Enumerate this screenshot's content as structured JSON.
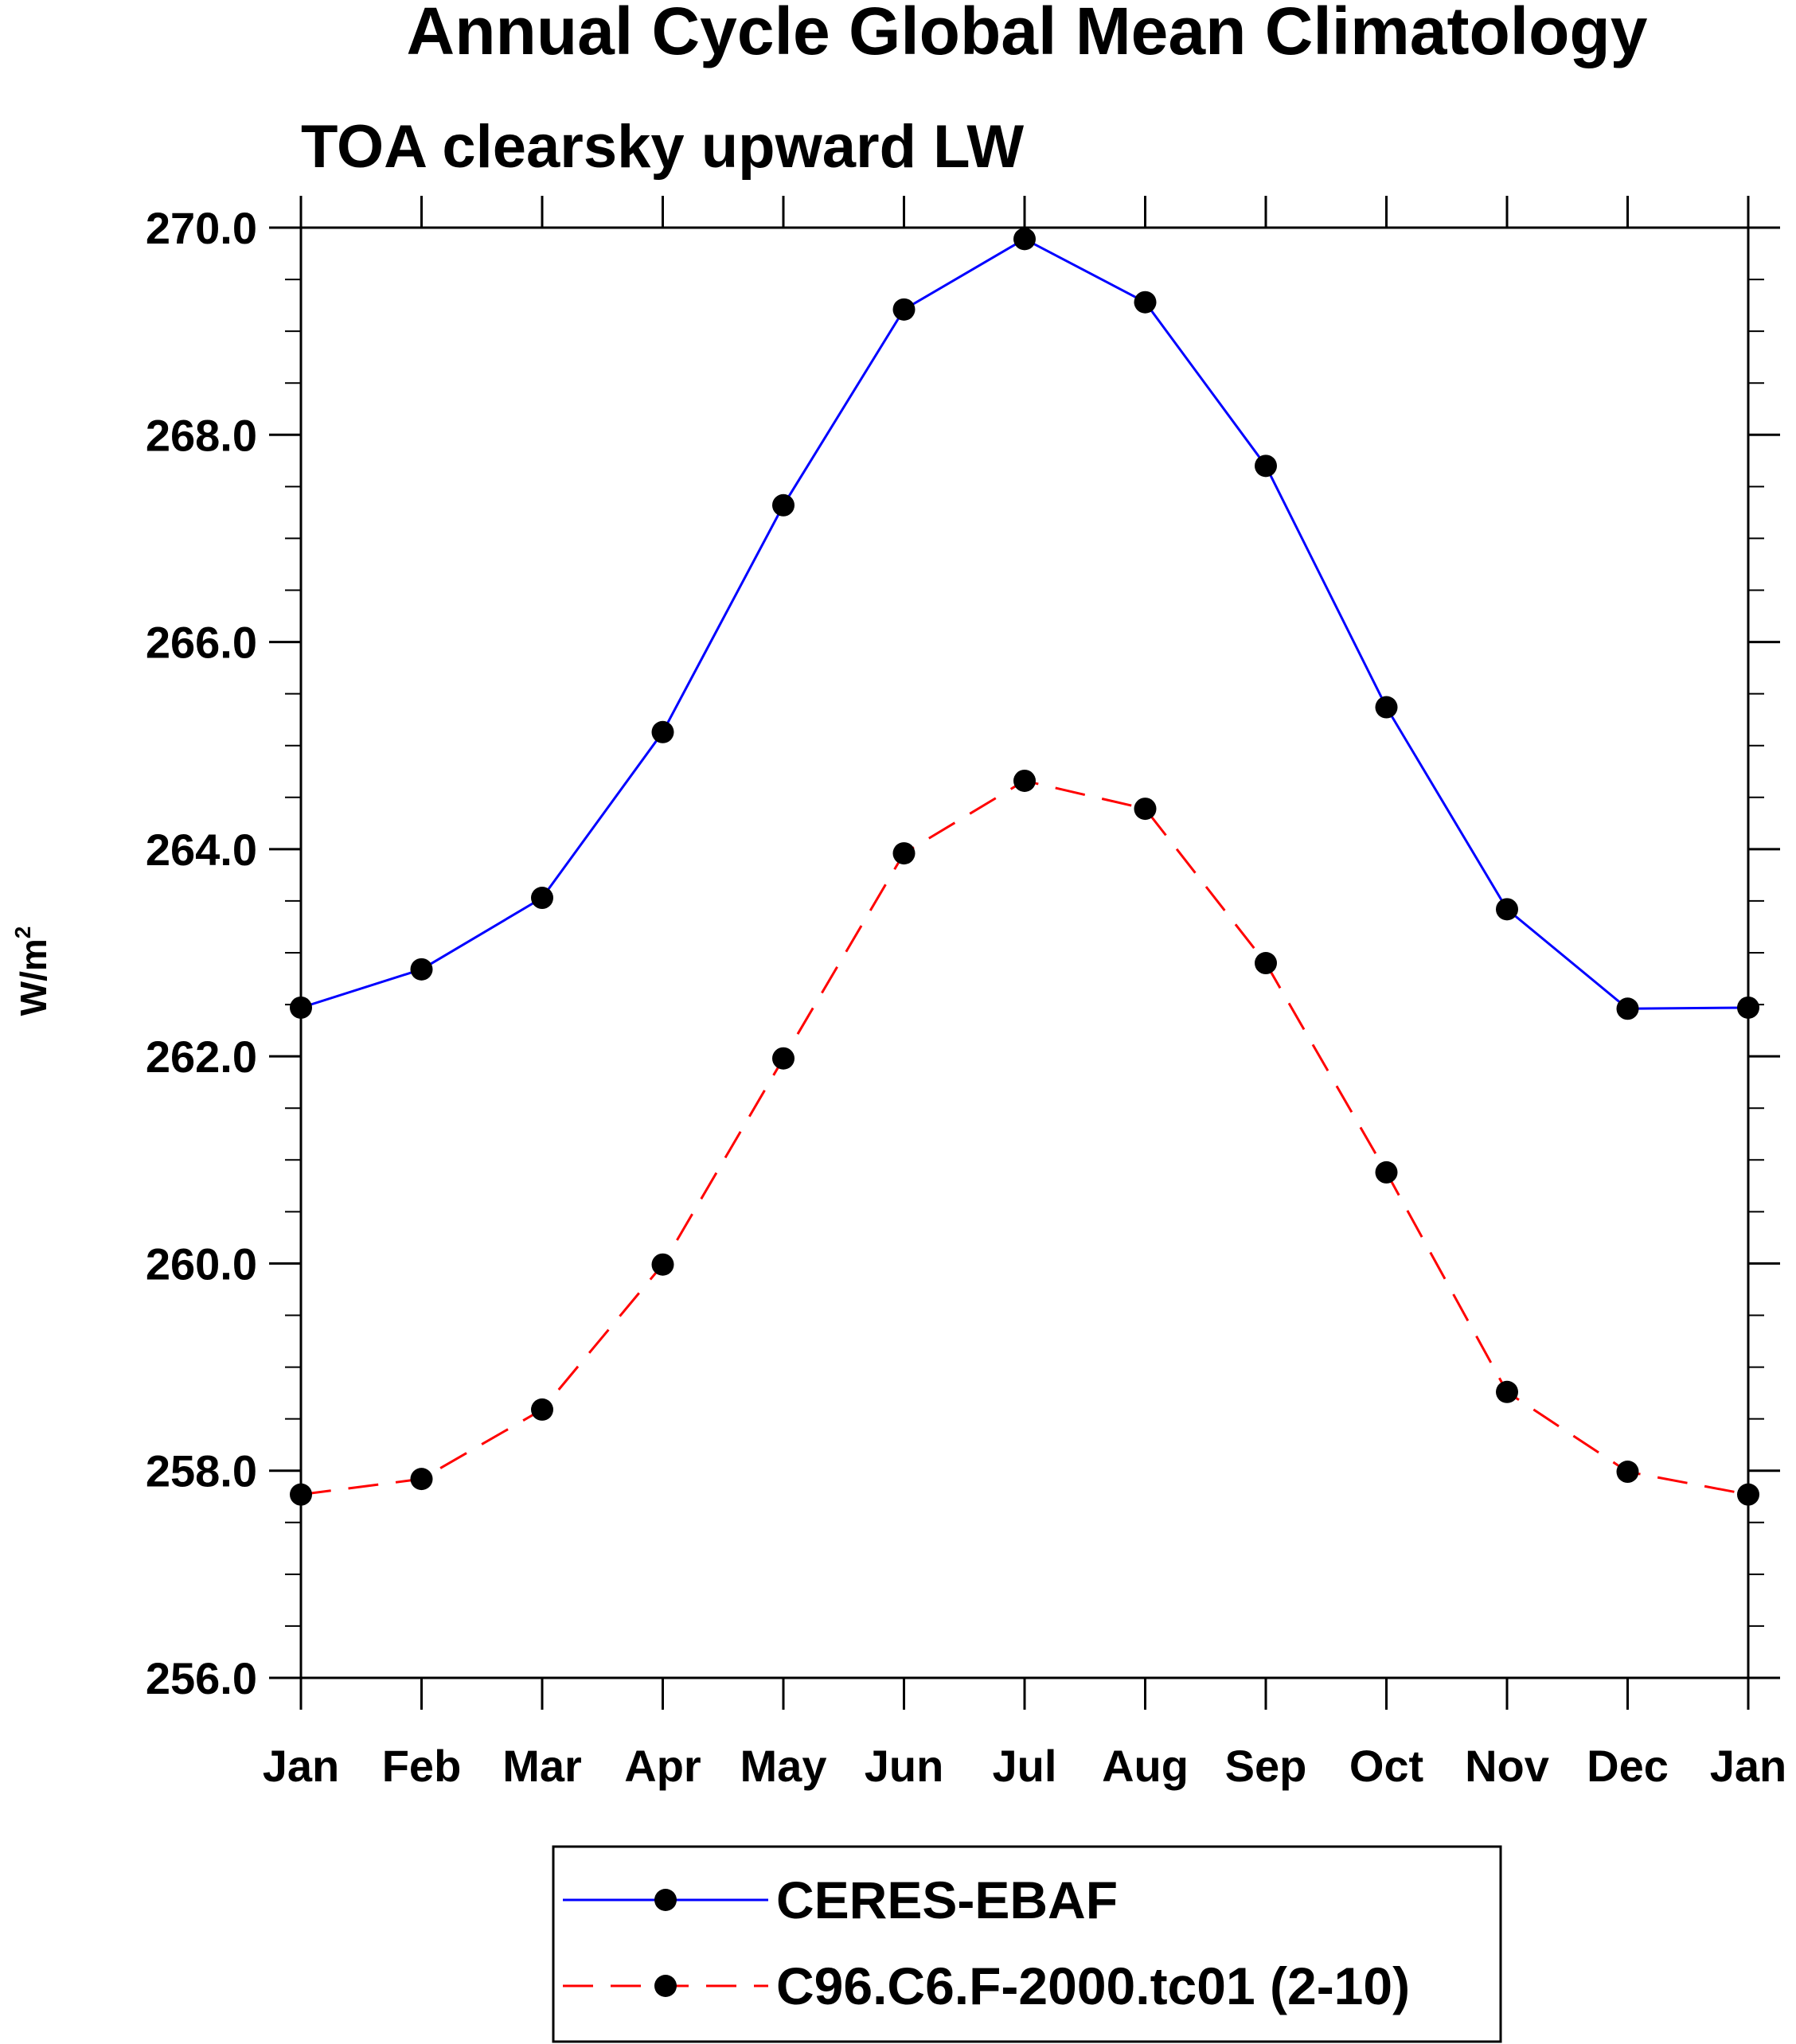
{
  "chart_data": {
    "type": "line",
    "title": "Annual Cycle Global Mean Climatology",
    "subtitle": "TOA clearsky upward LW",
    "ylabel": "W/m",
    "ylabel_superscript": "2",
    "xlabel": "",
    "categories": [
      "Jan",
      "Feb",
      "Mar",
      "Apr",
      "May",
      "Jun",
      "Jul",
      "Aug",
      "Sep",
      "Oct",
      "Nov",
      "Dec",
      "Jan"
    ],
    "ylim": [
      256.0,
      270.0
    ],
    "y_ticks": [
      "256.0",
      "258.0",
      "260.0",
      "262.0",
      "264.0",
      "266.0",
      "268.0",
      "270.0"
    ],
    "y_minor_step": 0.5,
    "grid": false,
    "legend_position": "bottom-center",
    "series": [
      {
        "name": "CERES-EBAF",
        "color": "#0000ff",
        "line_style": "solid",
        "marker": "filled-circle",
        "marker_color": "#000000",
        "values": [
          262.47,
          262.84,
          263.53,
          265.13,
          267.32,
          269.21,
          269.89,
          269.28,
          267.7,
          265.37,
          263.42,
          262.46,
          262.47
        ]
      },
      {
        "name": "C96.C6.F-2000.tc01 (2-10)",
        "color": "#ff0000",
        "line_style": "dashed",
        "marker": "filled-circle",
        "marker_color": "#000000",
        "values": [
          257.77,
          257.92,
          258.59,
          259.99,
          261.98,
          263.96,
          264.66,
          264.39,
          262.9,
          260.88,
          258.76,
          257.99,
          257.77
        ]
      }
    ]
  }
}
